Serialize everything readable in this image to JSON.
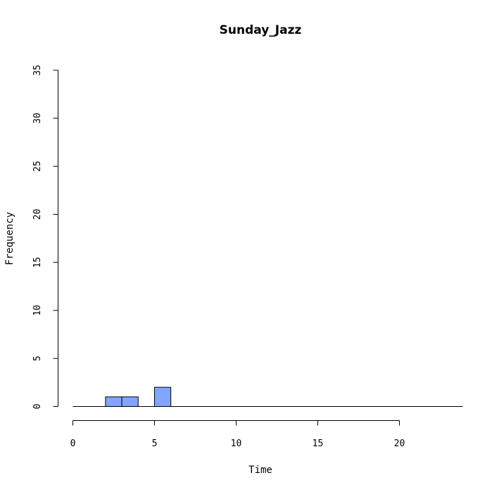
{
  "chart_data": {
    "type": "bar",
    "subtype": "histogram",
    "title": "Sunday_Jazz",
    "xlabel": "Time",
    "ylabel": "Frequency",
    "xlim": [
      0,
      24
    ],
    "ylim": [
      0,
      35
    ],
    "x_ticks": [
      0,
      5,
      10,
      15,
      20
    ],
    "y_ticks": [
      0,
      5,
      10,
      15,
      20,
      25,
      30,
      35
    ],
    "bin_width": 1,
    "bins": [
      {
        "start": 0,
        "end": 1,
        "count": 0
      },
      {
        "start": 1,
        "end": 2,
        "count": 0
      },
      {
        "start": 2,
        "end": 3,
        "count": 1
      },
      {
        "start": 3,
        "end": 4,
        "count": 1
      },
      {
        "start": 4,
        "end": 5,
        "count": 0
      },
      {
        "start": 5,
        "end": 6,
        "count": 2
      },
      {
        "start": 6,
        "end": 7,
        "count": 0
      },
      {
        "start": 7,
        "end": 8,
        "count": 0
      },
      {
        "start": 8,
        "end": 9,
        "count": 0
      },
      {
        "start": 9,
        "end": 10,
        "count": 0
      },
      {
        "start": 10,
        "end": 11,
        "count": 0
      },
      {
        "start": 11,
        "end": 12,
        "count": 0
      },
      {
        "start": 12,
        "end": 13,
        "count": 0
      },
      {
        "start": 13,
        "end": 14,
        "count": 0
      },
      {
        "start": 14,
        "end": 15,
        "count": 0
      },
      {
        "start": 15,
        "end": 16,
        "count": 0
      },
      {
        "start": 16,
        "end": 17,
        "count": 0
      },
      {
        "start": 17,
        "end": 18,
        "count": 0
      },
      {
        "start": 18,
        "end": 19,
        "count": 0
      },
      {
        "start": 19,
        "end": 20,
        "count": 0
      },
      {
        "start": 20,
        "end": 21,
        "count": 0
      },
      {
        "start": 21,
        "end": 22,
        "count": 0
      },
      {
        "start": 22,
        "end": 23,
        "count": 0
      },
      {
        "start": 23,
        "end": 24,
        "count": 0
      }
    ],
    "bar_color": "#82a6fd",
    "grid": false,
    "legend": "none"
  }
}
